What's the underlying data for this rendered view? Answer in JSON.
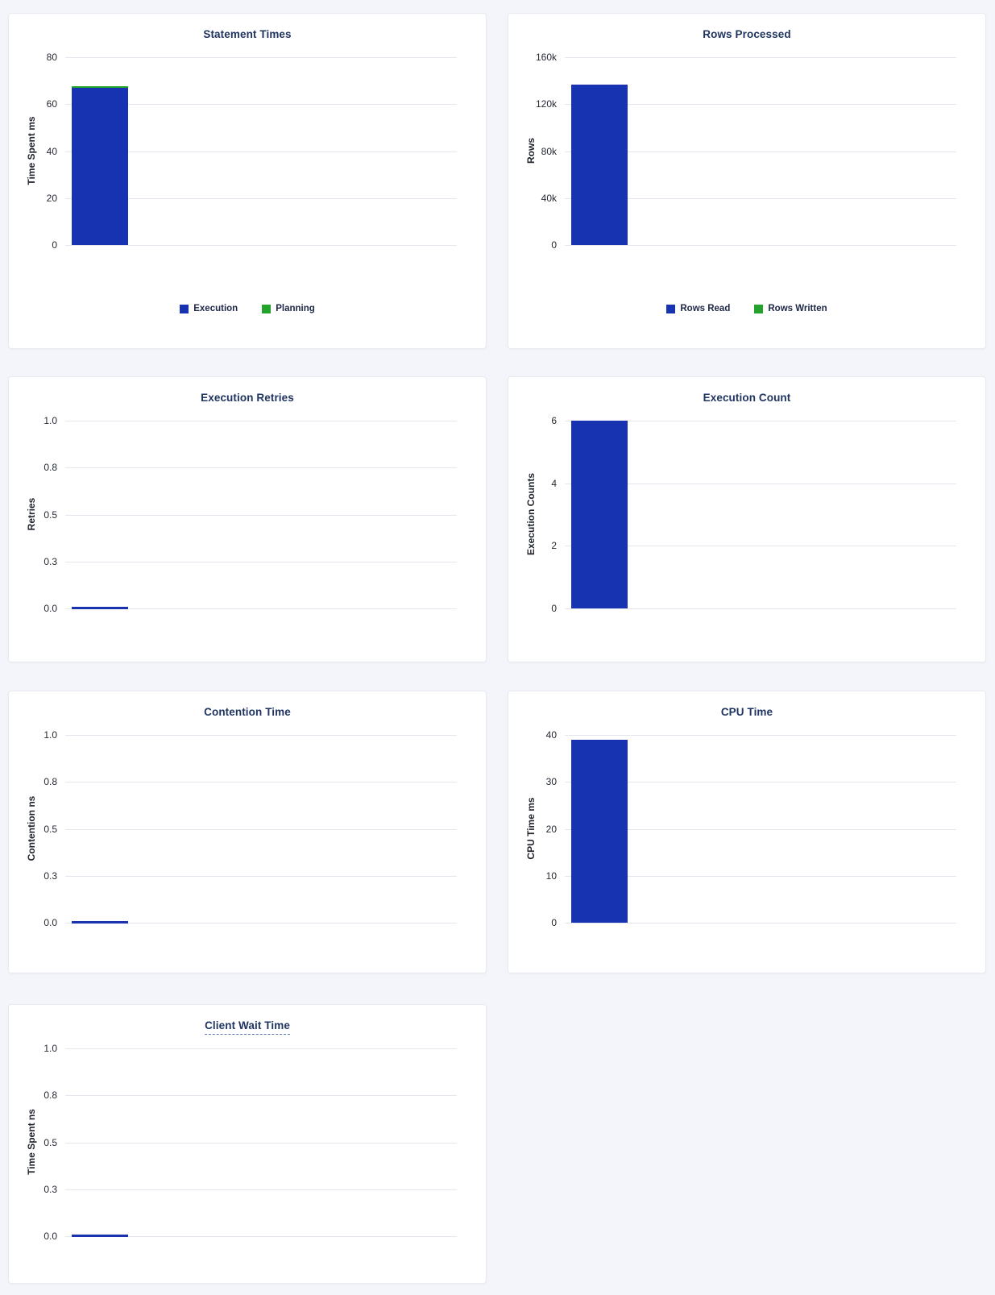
{
  "page": {
    "background": "#f3f5fa"
  },
  "colors": {
    "page-bg": "#f3f5fa",
    "card-bg": "#ffffff",
    "card-border": "#e7eaf0",
    "grid": "#e3e6ec",
    "title": "#1f3460",
    "tick": "#242933",
    "axis-label": "#20242c",
    "legend-text": "#20294a",
    "blue": "#1833b2",
    "green": "#24a32c",
    "underline": "#5b79b3"
  },
  "chart_data": [
    {
      "type": "bar",
      "title": "Statement Times",
      "ylabel": "Time Spent ms",
      "ylim": [
        0,
        80
      ],
      "grid": true,
      "stacked": true,
      "yticks": [
        {
          "value": 0,
          "label": "0"
        },
        {
          "value": 20,
          "label": "20"
        },
        {
          "value": 40,
          "label": "40"
        },
        {
          "value": 60,
          "label": "60"
        },
        {
          "value": 80,
          "label": "80"
        }
      ],
      "series": [
        {
          "name": "Execution",
          "color": "blue",
          "values": [
            67
          ]
        },
        {
          "name": "Planning",
          "color": "green",
          "values": [
            0.8
          ]
        }
      ],
      "legend": [
        {
          "label": "Execution",
          "color": "blue"
        },
        {
          "label": "Planning",
          "color": "green"
        }
      ],
      "legend_position": "bottom"
    },
    {
      "type": "bar",
      "title": "Rows Processed",
      "ylabel": "Rows",
      "ylim": [
        0,
        160000
      ],
      "grid": true,
      "stacked": true,
      "yticks": [
        {
          "value": 0,
          "label": "0"
        },
        {
          "value": 40000,
          "label": "40k"
        },
        {
          "value": 80000,
          "label": "80k"
        },
        {
          "value": 120000,
          "label": "120k"
        },
        {
          "value": 160000,
          "label": "160k"
        }
      ],
      "series": [
        {
          "name": "Rows Read",
          "color": "blue",
          "values": [
            137000
          ]
        },
        {
          "name": "Rows Written",
          "color": "green",
          "values": [
            0
          ]
        }
      ],
      "legend": [
        {
          "label": "Rows Read",
          "color": "blue"
        },
        {
          "label": "Rows Written",
          "color": "green"
        }
      ],
      "legend_position": "bottom"
    },
    {
      "type": "bar",
      "title": "Execution Retries",
      "ylabel": "Retries",
      "ylim": [
        0,
        1
      ],
      "grid": true,
      "stacked": false,
      "yticks": [
        {
          "value": 0,
          "label": "0.0"
        },
        {
          "value": 0.25,
          "label": "0.3"
        },
        {
          "value": 0.5,
          "label": "0.5"
        },
        {
          "value": 0.75,
          "label": "0.8"
        },
        {
          "value": 1,
          "label": "1.0"
        }
      ],
      "series": [
        {
          "name": "Retries",
          "color": "blue",
          "values": [
            0
          ]
        }
      ],
      "legend": null
    },
    {
      "type": "bar",
      "title": "Execution Count",
      "ylabel": "Execution Counts",
      "ylim": [
        0,
        6
      ],
      "grid": true,
      "stacked": false,
      "yticks": [
        {
          "value": 0,
          "label": "0"
        },
        {
          "value": 2,
          "label": "2"
        },
        {
          "value": 4,
          "label": "4"
        },
        {
          "value": 6,
          "label": "6"
        }
      ],
      "series": [
        {
          "name": "Execution Counts",
          "color": "blue",
          "values": [
            6
          ]
        }
      ],
      "legend": null
    },
    {
      "type": "bar",
      "title": "Contention Time",
      "ylabel": "Contention ns",
      "ylim": [
        0,
        1
      ],
      "grid": true,
      "stacked": false,
      "yticks": [
        {
          "value": 0,
          "label": "0.0"
        },
        {
          "value": 0.25,
          "label": "0.3"
        },
        {
          "value": 0.5,
          "label": "0.5"
        },
        {
          "value": 0.75,
          "label": "0.8"
        },
        {
          "value": 1,
          "label": "1.0"
        }
      ],
      "series": [
        {
          "name": "Contention",
          "color": "blue",
          "values": [
            0
          ]
        }
      ],
      "legend": null
    },
    {
      "type": "bar",
      "title": "CPU Time",
      "ylabel": "CPU Time ms",
      "ylim": [
        0,
        40
      ],
      "grid": true,
      "stacked": false,
      "yticks": [
        {
          "value": 0,
          "label": "0"
        },
        {
          "value": 10,
          "label": "10"
        },
        {
          "value": 20,
          "label": "20"
        },
        {
          "value": 30,
          "label": "30"
        },
        {
          "value": 40,
          "label": "40"
        }
      ],
      "series": [
        {
          "name": "CPU Time",
          "color": "blue",
          "values": [
            39
          ]
        }
      ],
      "legend": null
    },
    {
      "type": "bar",
      "title": "Client Wait Time",
      "title_underlined": true,
      "ylabel": "Time Spent ns",
      "ylim": [
        0,
        1
      ],
      "grid": true,
      "stacked": false,
      "yticks": [
        {
          "value": 0,
          "label": "0.0"
        },
        {
          "value": 0.25,
          "label": "0.3"
        },
        {
          "value": 0.5,
          "label": "0.5"
        },
        {
          "value": 0.75,
          "label": "0.8"
        },
        {
          "value": 1,
          "label": "1.0"
        }
      ],
      "series": [
        {
          "name": "Time Spent",
          "color": "blue",
          "values": [
            0
          ]
        }
      ],
      "legend": null
    }
  ]
}
